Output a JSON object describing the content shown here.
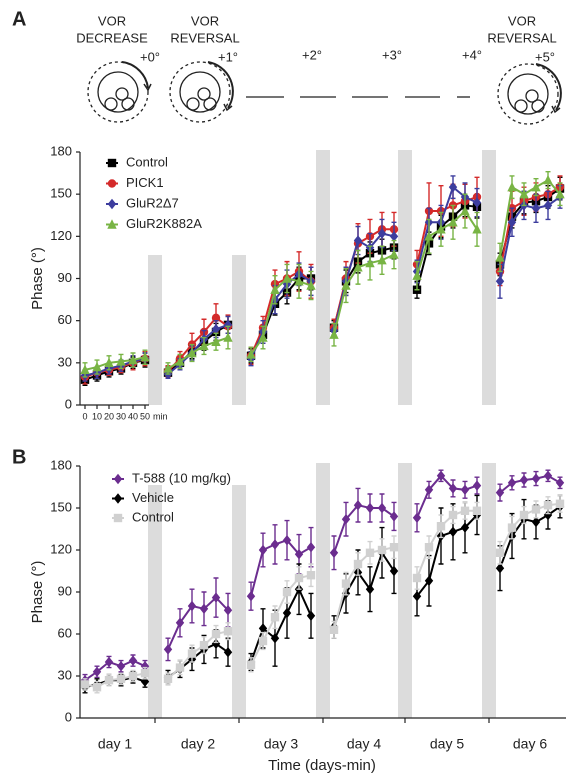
{
  "panel_labels": [
    "A",
    "B"
  ],
  "protocol": [
    {
      "title": [
        "VOR",
        "DECREASE"
      ],
      "step": "+0°"
    },
    {
      "title": [
        "VOR",
        "REVERSAL"
      ],
      "step": "+1°"
    },
    {
      "step": "+2°"
    },
    {
      "step": "+3°"
    },
    {
      "step": "+4°"
    },
    {
      "title": [
        "VOR",
        "REVERSAL"
      ],
      "step": "+5°"
    }
  ],
  "chart_data": [
    {
      "type": "line",
      "ylabel": "Phase (°)",
      "ylim": [
        0,
        180
      ],
      "yticks": [
        0,
        30,
        60,
        90,
        120,
        150,
        180
      ],
      "x": [
        0,
        10,
        20,
        30,
        40,
        50
      ],
      "xunit": "min",
      "series": [
        {
          "name": "Control",
          "color": "#000000",
          "marker": "square",
          "values": [
            [
              18,
              21,
              24,
              26,
              30,
              32
            ],
            [
              23,
              30,
              38,
              45,
              52,
              57
            ],
            [
              35,
              50,
              72,
              80,
              90,
              90
            ],
            [
              55,
              88,
              102,
              108,
              110,
              112
            ],
            [
              82,
              115,
              127,
              134,
              142,
              141
            ],
            [
              100,
              134,
              144,
              145,
              148,
              154
            ]
          ],
          "errors": [
            [
              4,
              4,
              4,
              4,
              4,
              5
            ],
            [
              4,
              4,
              5,
              6,
              6,
              6
            ],
            [
              5,
              6,
              8,
              8,
              8,
              8
            ],
            [
              5,
              8,
              8,
              8,
              8,
              8
            ],
            [
              6,
              8,
              8,
              8,
              8,
              8
            ],
            [
              8,
              8,
              8,
              8,
              8,
              8
            ]
          ]
        },
        {
          "name": "PICK1",
          "color": "#d42a2a",
          "marker": "circle",
          "values": [
            [
              20,
              23,
              25,
              27,
              30,
              33
            ],
            [
              24,
              33,
              43,
              52,
              62,
              56
            ],
            [
              35,
              55,
              86,
              90,
              95,
              88
            ],
            [
              55,
              90,
              115,
              120,
              125,
              125
            ],
            [
              100,
              138,
              138,
              142,
              145,
              148
            ],
            [
              95,
              140,
              145,
              148,
              150,
              155
            ]
          ],
          "errors": [
            [
              5,
              4,
              4,
              4,
              5,
              5
            ],
            [
              4,
              5,
              8,
              9,
              10,
              8
            ],
            [
              6,
              8,
              10,
              12,
              14,
              12
            ],
            [
              6,
              12,
              14,
              12,
              12,
              12
            ],
            [
              10,
              20,
              18,
              15,
              12,
              14
            ],
            [
              10,
              12,
              10,
              10,
              8,
              8
            ]
          ]
        },
        {
          "name": "GluR2Δ7",
          "color": "#3d3d9e",
          "marker": "diamond",
          "values": [
            [
              21,
              23,
              26,
              28,
              31,
              33
            ],
            [
              22,
              29,
              37,
              47,
              54,
              57
            ],
            [
              33,
              52,
              75,
              86,
              93,
              88
            ],
            [
              53,
              88,
              117,
              112,
              122,
              120
            ],
            [
              95,
              130,
              130,
              155,
              148,
              144
            ],
            [
              88,
              130,
              142,
              140,
              142,
              148
            ]
          ],
          "errors": [
            [
              4,
              4,
              4,
              4,
              4,
              4
            ],
            [
              3,
              4,
              5,
              6,
              6,
              6
            ],
            [
              5,
              8,
              10,
              10,
              8,
              10
            ],
            [
              5,
              10,
              10,
              10,
              10,
              10
            ],
            [
              8,
              10,
              12,
              8,
              10,
              10
            ],
            [
              12,
              10,
              10,
              10,
              10,
              8
            ]
          ]
        },
        {
          "name": "GluR2K882A",
          "color": "#78b444",
          "marker": "triangle",
          "values": [
            [
              25,
              27,
              30,
              31,
              32,
              34
            ],
            [
              26,
              31,
              37,
              42,
              45,
              48
            ],
            [
              36,
              48,
              82,
              90,
              88,
              85
            ],
            [
              50,
              85,
              98,
              101,
              103,
              107
            ],
            [
              92,
              120,
              125,
              130,
              138,
              125
            ],
            [
              105,
              155,
              150,
              155,
              160,
              150
            ]
          ],
          "errors": [
            [
              5,
              5,
              5,
              5,
              5,
              5
            ],
            [
              4,
              5,
              6,
              6,
              6,
              8
            ],
            [
              5,
              8,
              10,
              10,
              12,
              10
            ],
            [
              8,
              12,
              12,
              12,
              10,
              10
            ],
            [
              10,
              12,
              12,
              12,
              12,
              12
            ],
            [
              10,
              8,
              8,
              6,
              6,
              8
            ]
          ]
        }
      ]
    },
    {
      "type": "line",
      "ylabel": "Phase (°)",
      "xlabel": "Time (days-min)",
      "ylim": [
        0,
        180
      ],
      "yticks": [
        0,
        30,
        60,
        90,
        120,
        150,
        180
      ],
      "categories": [
        "day 1",
        "day 2",
        "day 3",
        "day 4",
        "day 5",
        "day 6"
      ],
      "series": [
        {
          "name": "T-588 (10 mg/kg)",
          "color": "#6b2d8f",
          "marker": "diamond",
          "values": [
            [
              27,
              33,
              40,
              37,
              41,
              37
            ],
            [
              49,
              68,
              80,
              78,
              86,
              77
            ],
            [
              87,
              120,
              124,
              127,
              117,
              122
            ],
            [
              118,
              142,
              152,
              150,
              150,
              144
            ],
            [
              143,
              163,
              173,
              164,
              163,
              166
            ],
            [
              161,
              168,
              170,
              171,
              173,
              168
            ]
          ],
          "errors": [
            [
              4,
              4,
              4,
              4,
              4,
              4
            ],
            [
              8,
              10,
              12,
              12,
              14,
              12
            ],
            [
              10,
              12,
              14,
              14,
              14,
              14
            ],
            [
              12,
              12,
              12,
              10,
              10,
              10
            ],
            [
              10,
              6,
              4,
              6,
              6,
              6
            ],
            [
              6,
              5,
              5,
              5,
              4,
              4
            ]
          ]
        },
        {
          "name": "Vehicle",
          "color": "#000000",
          "marker": "diamond",
          "values": [
            [
              22,
              24,
              27,
              27,
              29,
              26
            ],
            [
              29,
              35,
              42,
              49,
              53,
              47
            ],
            [
              40,
              64,
              57,
              75,
              92,
              73
            ],
            [
              65,
              89,
              104,
              92,
              118,
              105
            ],
            [
              87,
              98,
              130,
              133,
              136,
              145
            ],
            [
              107,
              130,
              142,
              140,
              145,
              151
            ]
          ],
          "errors": [
            [
              4,
              4,
              4,
              4,
              4,
              4
            ],
            [
              5,
              6,
              8,
              10,
              10,
              10
            ],
            [
              6,
              14,
              20,
              18,
              18,
              16
            ],
            [
              8,
              14,
              16,
              16,
              18,
              16
            ],
            [
              14,
              18,
              20,
              20,
              18,
              14
            ],
            [
              16,
              16,
              14,
              12,
              10,
              8
            ]
          ]
        },
        {
          "name": "Control",
          "color": "#d0d0d0",
          "marker": "square",
          "values": [
            [
              24,
              22,
              27,
              28,
              30,
              32
            ],
            [
              28,
              36,
              46,
              52,
              60,
              62
            ],
            [
              38,
              55,
              72,
              90,
              100,
              102
            ],
            [
              63,
              96,
              110,
              118,
              120,
              122
            ],
            [
              100,
              122,
              137,
              145,
              148,
              148
            ],
            [
              118,
              136,
              145,
              149,
              152,
              153
            ]
          ],
          "errors": [
            [
              4,
              4,
              4,
              4,
              4,
              4
            ],
            [
              4,
              5,
              6,
              6,
              6,
              6
            ],
            [
              5,
              6,
              8,
              8,
              8,
              8
            ],
            [
              6,
              8,
              8,
              8,
              8,
              8
            ],
            [
              8,
              8,
              8,
              6,
              6,
              6
            ],
            [
              8,
              8,
              6,
              6,
              6,
              6
            ]
          ]
        }
      ]
    }
  ]
}
